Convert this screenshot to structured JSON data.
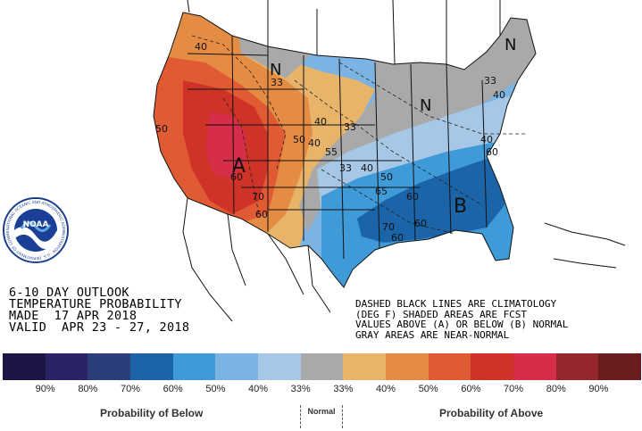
{
  "title": {
    "line1": "6-10 DAY OUTLOOK",
    "line2": "TEMPERATURE PROBABILITY",
    "line3": "MADE  17 APR 2018",
    "line4": "VALID  APR 23 - 27, 2018"
  },
  "notes": {
    "line1": "DASHED BLACK LINES ARE CLIMATOLOGY",
    "line2": "(DEG F) SHADED AREAS ARE FCST",
    "line3": "VALUES ABOVE (A) OR BELOW (B) NORMAL",
    "line4": "GRAY AREAS ARE NEAR-NORMAL"
  },
  "map_labels": {
    "A": "A",
    "B": "B",
    "N1": "N",
    "N2": "N",
    "N3": "N",
    "c40a": "40",
    "c50a": "50",
    "c33a": "33",
    "c40b": "40",
    "c50b": "50",
    "c55": "55",
    "c33b": "33",
    "c40c": "40",
    "c33c": "33",
    "c40d": "40",
    "c60a": "60",
    "c70a": "70",
    "c60b": "60",
    "c50c": "50",
    "c65": "65",
    "c60c": "60",
    "c70b": "70",
    "c60d": "60",
    "c60e": "60",
    "c60f": "60",
    "c33d": "33",
    "c40e": "40",
    "c40f": "40"
  },
  "legend": {
    "colors": [
      "#1b1646",
      "#2a2366",
      "#2b3e7a",
      "#1b64a8",
      "#3f9ad8",
      "#7bb4e3",
      "#a6c7e6",
      "#a9a9a9",
      "#e8b46a",
      "#e58c44",
      "#e05a33",
      "#cf3328",
      "#d62d4a",
      "#96262e",
      "#6a1c1f"
    ],
    "ticks": [
      "90%",
      "80%",
      "70%",
      "60%",
      "50%",
      "40%",
      "33%",
      "33%",
      "40%",
      "50%",
      "60%",
      "70%",
      "80%",
      "90%"
    ],
    "below_caption": "Probability of Below",
    "normal_caption": "Normal",
    "above_caption": "Probability of Above"
  },
  "logo": {
    "center_text": "NOAA",
    "ring_text": "NATIONAL OCEANIC AND ATMOSPHERIC ADMINISTRATION · U.S. DEPARTMENT OF COMMERCE"
  }
}
